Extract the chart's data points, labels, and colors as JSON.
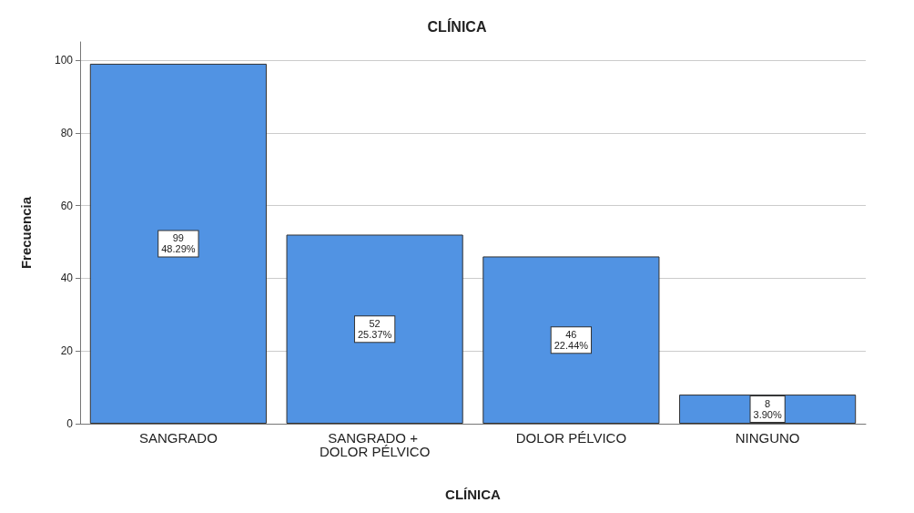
{
  "chart_data": {
    "type": "bar",
    "title": "CLÍNICA",
    "xlabel": "CLÍNICA",
    "ylabel": "Frecuencia",
    "categories": [
      "SANGRADO",
      "SANGRADO + DOLOR PÉLVICO",
      "DOLOR PÉLVICO",
      "NINGUNO"
    ],
    "values": [
      99,
      52,
      46,
      8
    ],
    "value_labels": [
      "99\n48.29%",
      "52\n25.37%",
      "46\n22.44%",
      "8\n3.90%"
    ],
    "color": "#5193e3",
    "ylim": [
      0,
      105
    ],
    "yticks": [
      0,
      20,
      40,
      60,
      80,
      100
    ],
    "grid": "y"
  }
}
